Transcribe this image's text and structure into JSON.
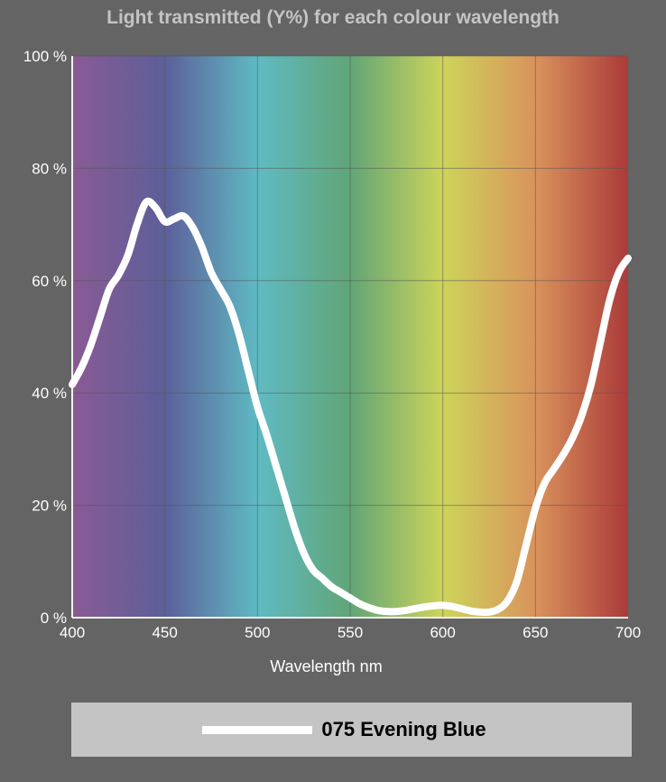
{
  "chart_data": {
    "type": "line",
    "title": "Light transmitted (Y%) for each colour wavelength",
    "xlabel": "Wavelength nm",
    "ylabel": "",
    "xlim": [
      400,
      700
    ],
    "ylim": [
      0,
      100
    ],
    "x_ticks": [
      "400",
      "450",
      "500",
      "550",
      "600",
      "650",
      "700"
    ],
    "y_ticks": [
      "0 %",
      "20 %",
      "40 %",
      "60 %",
      "80 %",
      "100 %"
    ],
    "grid": true,
    "legend_position": "bottom",
    "series": [
      {
        "name": "075 Evening Blue",
        "color": "#ffffff",
        "x": [
          400,
          405,
          410,
          415,
          420,
          425,
          430,
          435,
          440,
          445,
          450,
          455,
          460,
          465,
          470,
          475,
          480,
          485,
          490,
          495,
          500,
          505,
          510,
          515,
          520,
          525,
          530,
          535,
          540,
          545,
          550,
          555,
          560,
          565,
          570,
          575,
          580,
          585,
          590,
          595,
          600,
          605,
          610,
          615,
          620,
          625,
          630,
          635,
          640,
          645,
          650,
          655,
          660,
          665,
          670,
          675,
          680,
          685,
          690,
          695,
          700
        ],
        "y": [
          41.5,
          44.5,
          48.5,
          53.5,
          58.5,
          61,
          64.5,
          70,
          74,
          73,
          70.5,
          71,
          71.5,
          69.5,
          66,
          61.5,
          58.5,
          55.5,
          50.5,
          44,
          37.5,
          32.5,
          27,
          21.5,
          16,
          11.5,
          8.5,
          7,
          5.5,
          4.5,
          3.5,
          2.5,
          1.8,
          1.3,
          1.1,
          1.1,
          1.3,
          1.6,
          1.9,
          2.1,
          2.2,
          2,
          1.6,
          1.2,
          1,
          1,
          1.5,
          3,
          6.5,
          13,
          19.5,
          24,
          26.5,
          29,
          32,
          36,
          41.5,
          49,
          56.5,
          61.5,
          64
        ]
      }
    ],
    "spectrum_colors": [
      "#8a5a94",
      "#5c5f99",
      "#5fbac3",
      "#61a577",
      "#cdd45a",
      "#d9935c",
      "#ab3a3a"
    ]
  },
  "legend": {
    "label": "075 Evening Blue"
  }
}
